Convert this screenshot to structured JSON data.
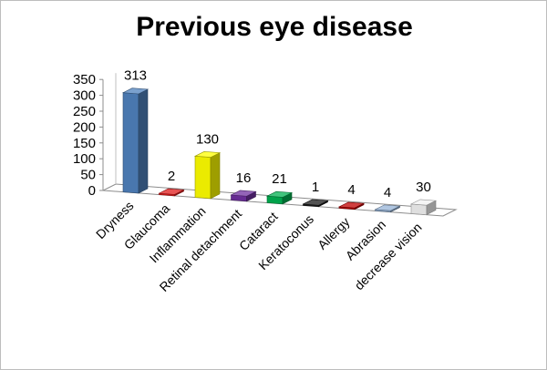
{
  "chart_data": {
    "type": "bar",
    "title": "Previous eye disease",
    "categories": [
      "Dryness",
      "Glaucoma",
      "Inflammation",
      "Retinal detachment",
      "Cataract",
      "Keratoconus",
      "Allergy",
      "Abrasion",
      "decrease vision"
    ],
    "values": [
      313,
      2,
      130,
      16,
      21,
      1,
      4,
      4,
      30
    ],
    "colors": [
      "#4f81bd",
      "#e01b1b",
      "#ffff00",
      "#7030a0",
      "#00b050",
      "#1a1a1a",
      "#c00000",
      "#95b3d7",
      "#f2f2f2"
    ],
    "yticks": [
      0,
      50,
      100,
      150,
      200,
      250,
      300,
      350
    ],
    "ylim": [
      0,
      350
    ],
    "grid": false,
    "legend": "none"
  }
}
